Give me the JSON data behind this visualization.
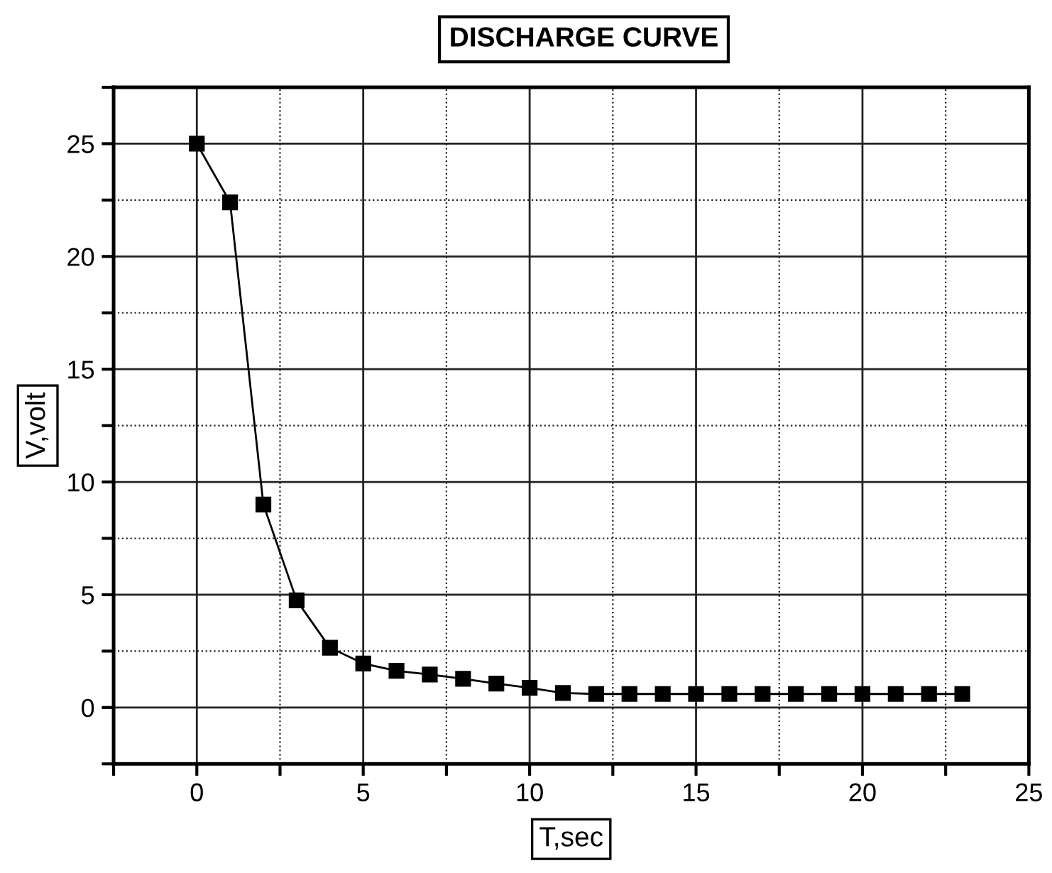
{
  "chart_data": {
    "type": "line",
    "title": "DISCHARGE CURVE",
    "xlabel": "T,sec",
    "ylabel": "V,volt",
    "x": [
      0,
      1,
      2,
      3,
      4,
      5,
      6,
      7,
      8,
      9,
      10,
      11,
      12,
      13,
      14,
      15,
      16,
      17,
      18,
      19,
      20,
      21,
      22,
      23
    ],
    "values": [
      25,
      22.4,
      9.0,
      4.75,
      2.65,
      1.95,
      1.63,
      1.46,
      1.27,
      1.06,
      0.87,
      0.64,
      0.6,
      0.6,
      0.6,
      0.6,
      0.6,
      0.6,
      0.6,
      0.6,
      0.6,
      0.6,
      0.6,
      0.6
    ],
    "color": "#000000",
    "marker": "square",
    "line_style": "solid",
    "xlim": [
      -2.5,
      25
    ],
    "ylim": [
      -2.5,
      27.5
    ],
    "xticks": [
      {
        "value": -2.5,
        "label": null
      },
      0,
      {
        "value": 2.5,
        "label": null
      },
      5,
      {
        "value": 7.5,
        "label": null
      },
      10,
      {
        "value": 12.5,
        "label": null
      },
      15,
      {
        "value": 17.5,
        "label": null
      },
      20,
      {
        "value": 22.5,
        "label": null
      },
      25
    ],
    "yticks": [
      {
        "value": -2.5,
        "label": null
      },
      0,
      {
        "value": 2.5,
        "label": null
      },
      5,
      {
        "value": 7.5,
        "label": null
      },
      10,
      {
        "value": 12.5,
        "label": null
      },
      15,
      {
        "value": 17.5,
        "label": null
      },
      20,
      {
        "value": 22.5,
        "label": null
      },
      25,
      {
        "value": 27.5,
        "label": null
      }
    ],
    "grid": true
  }
}
